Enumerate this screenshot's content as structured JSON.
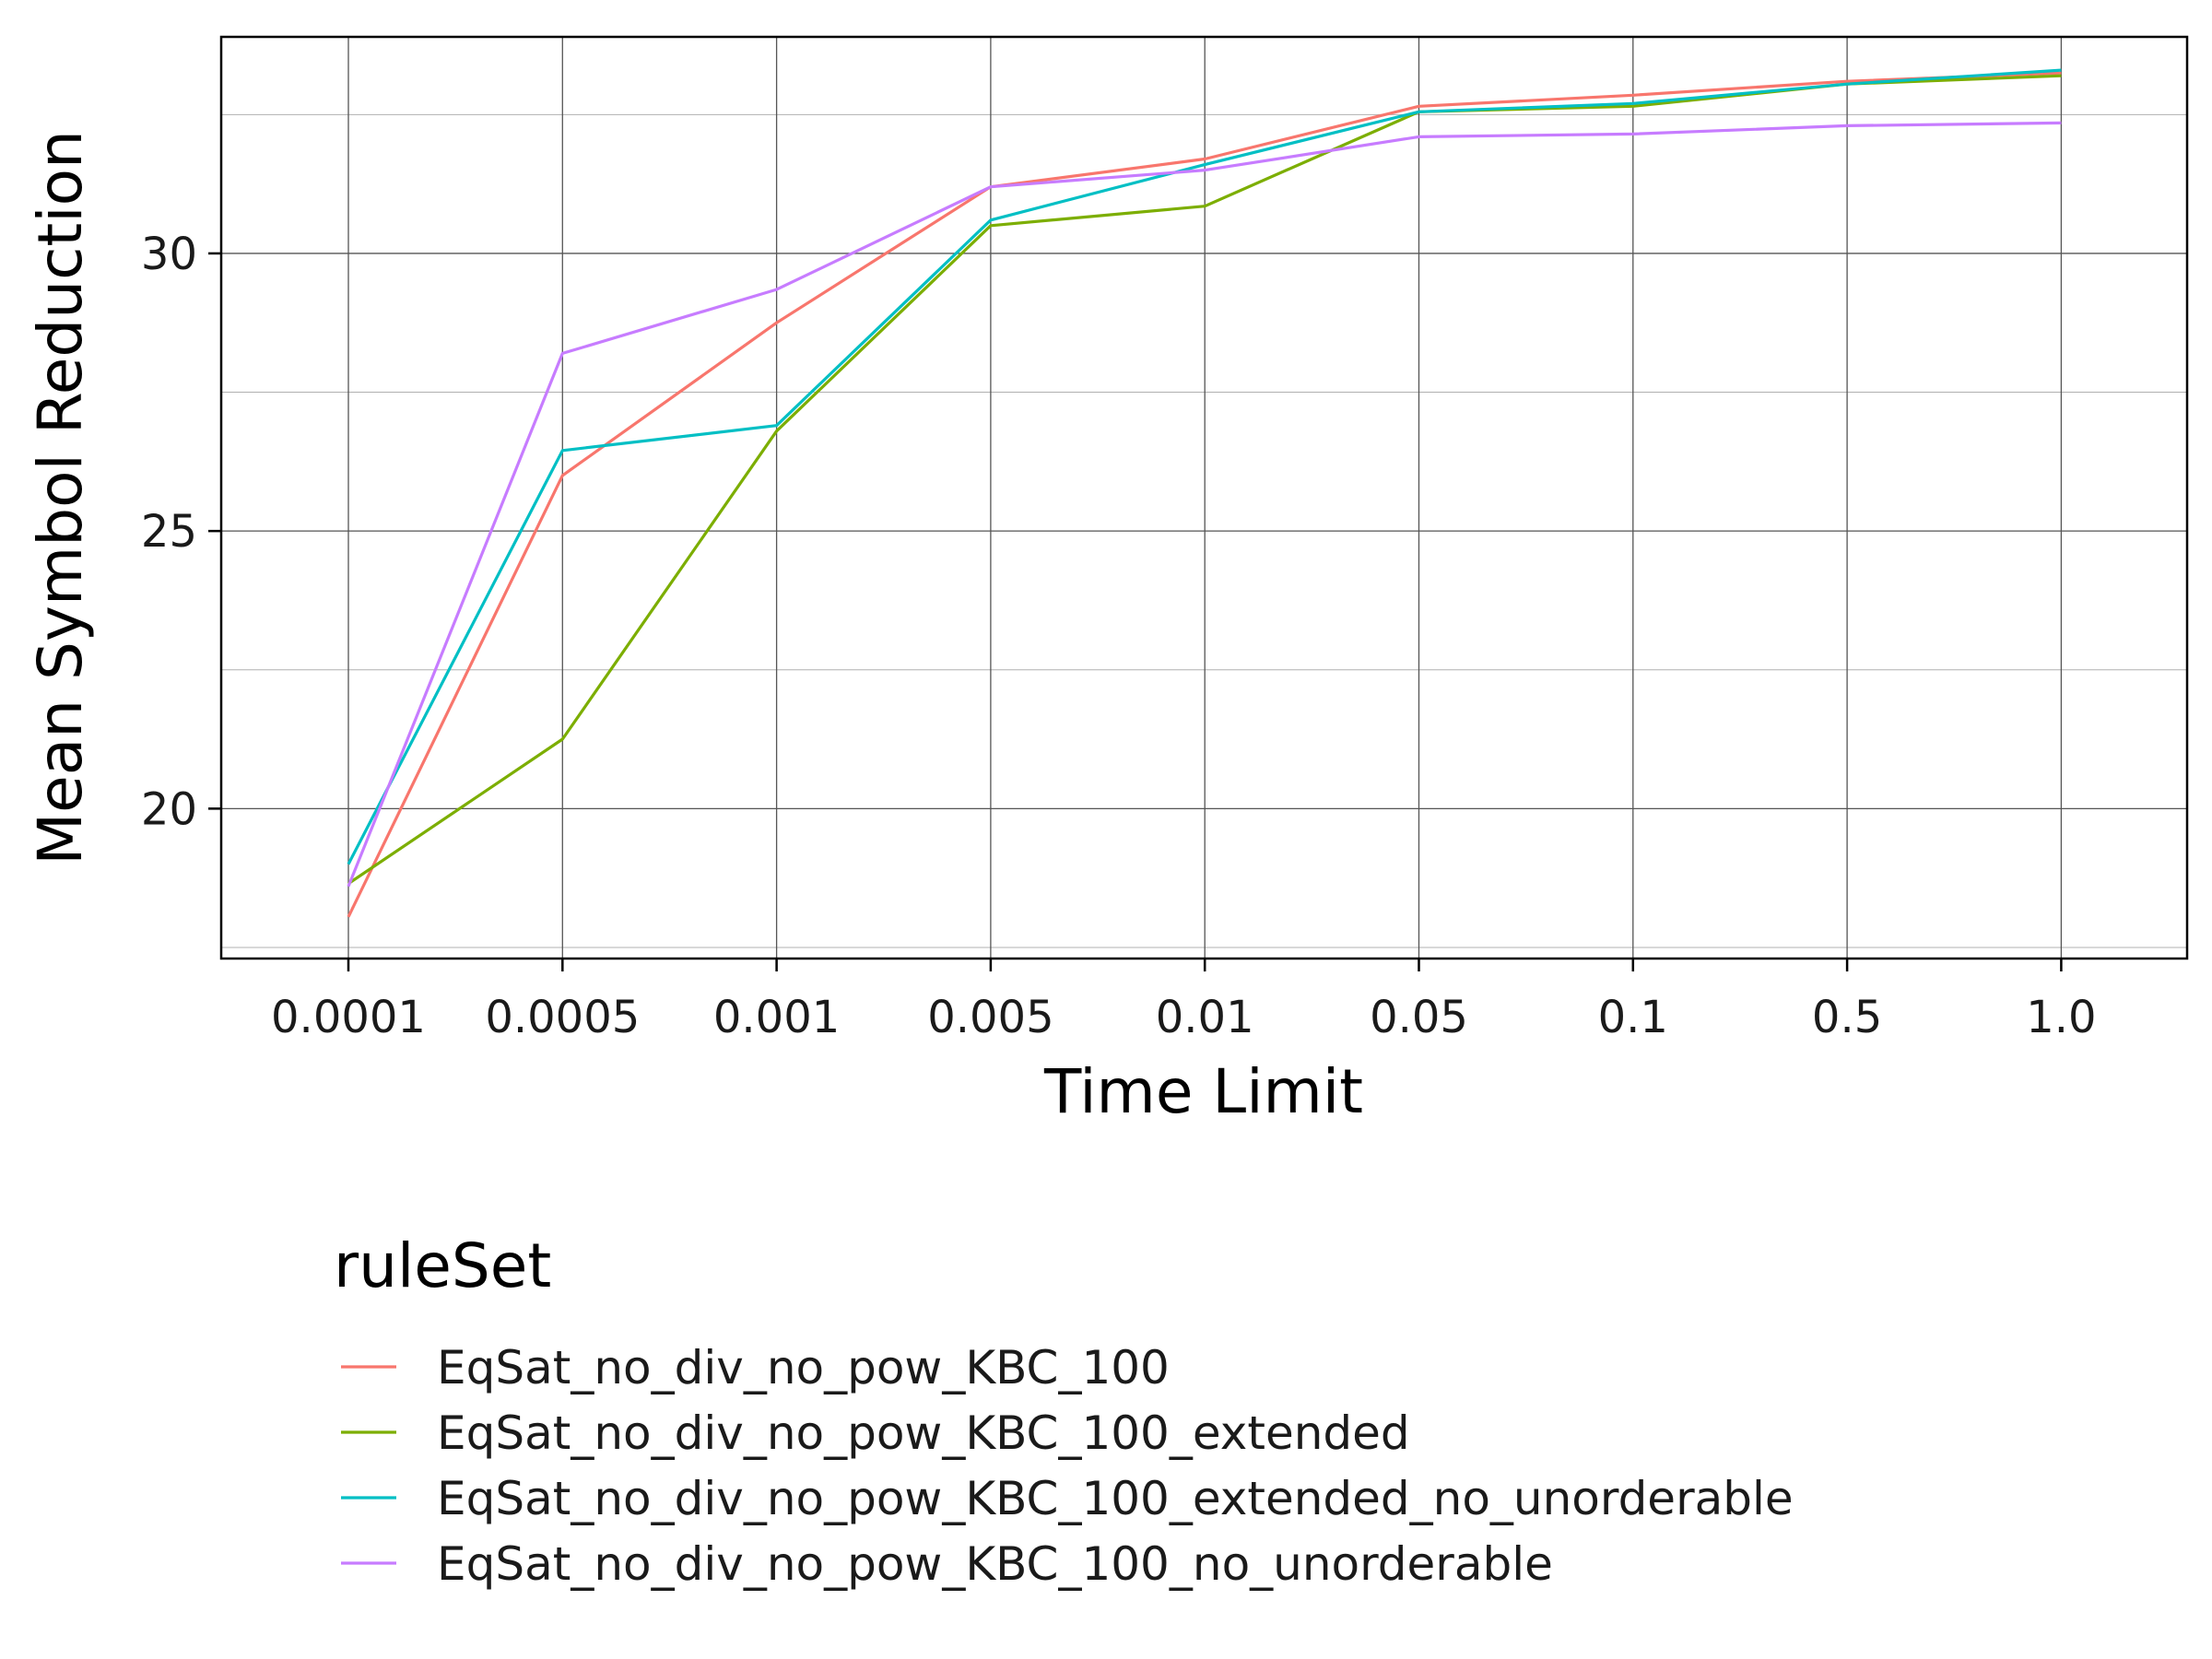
{
  "chart_data": {
    "type": "line",
    "xlabel": "Time Limit",
    "ylabel": "Mean Symbol Reduction",
    "x": [
      "0.0001",
      "0.0005",
      "0.001",
      "0.005",
      "0.01",
      "0.05",
      "0.1",
      "0.5",
      "1.0"
    ],
    "x_scale": "categorical",
    "ylim": [
      17.3,
      33.9
    ],
    "yticks": [
      20,
      25,
      30
    ],
    "y_minor_gridlines": [
      17.5,
      22.5,
      27.5,
      32.5
    ],
    "grid": true,
    "legend": {
      "title": "ruleSet",
      "placement": "bottom-left"
    },
    "series": [
      {
        "name": "EqSat_no_div_no_pow_KBC_100",
        "color": "#F8766D",
        "values": [
          18.05,
          26.0,
          28.75,
          31.2,
          31.7,
          32.65,
          32.85,
          33.1,
          33.25
        ]
      },
      {
        "name": "EqSat_no_div_no_pow_KBC_100_extended",
        "color": "#7CAE00",
        "values": [
          18.65,
          21.25,
          26.8,
          30.5,
          30.85,
          32.55,
          32.65,
          33.05,
          33.2
        ]
      },
      {
        "name": "EqSat_no_div_no_pow_KBC_100_extended_no_unorderable",
        "color": "#00BFC4",
        "values": [
          19.0,
          26.45,
          26.9,
          30.6,
          31.6,
          32.55,
          32.7,
          33.05,
          33.3
        ]
      },
      {
        "name": "EqSat_no_div_no_pow_KBC_100_no_unorderable",
        "color": "#C77CFF",
        "values": [
          18.6,
          28.2,
          29.35,
          31.2,
          31.5,
          32.1,
          32.15,
          32.3,
          32.35
        ]
      }
    ]
  }
}
